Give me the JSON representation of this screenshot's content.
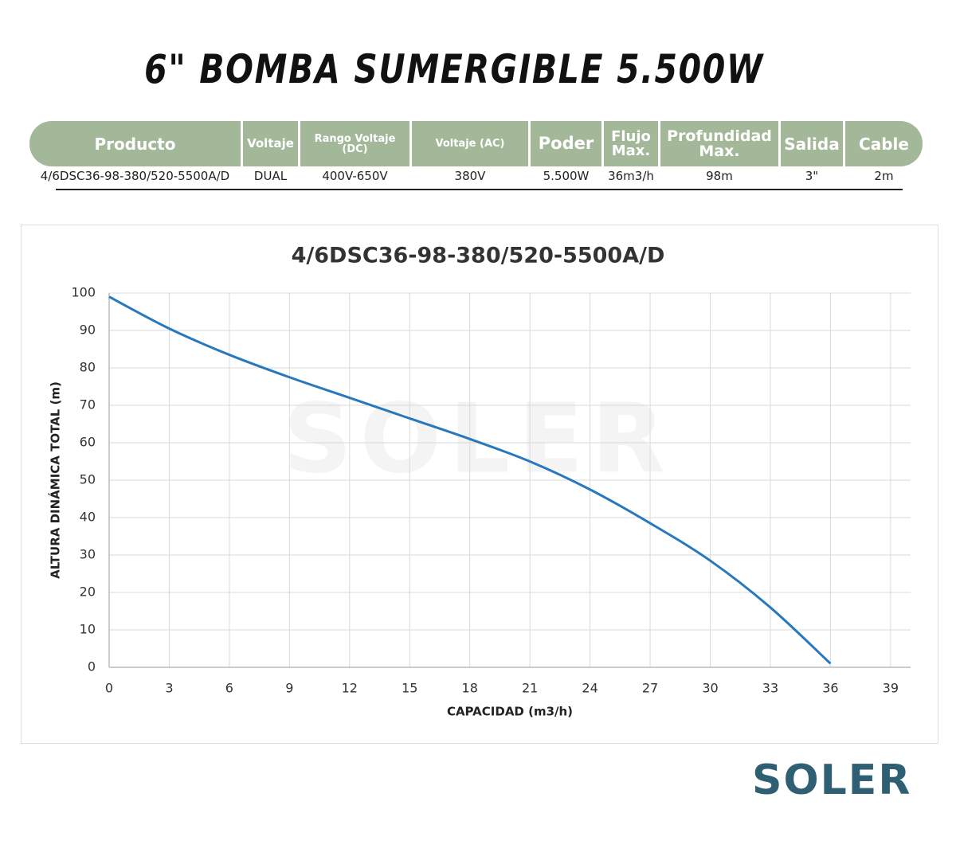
{
  "header": {
    "title": "6\" BOMBA SUMERGIBLE 5.500W"
  },
  "table": {
    "headers": [
      "Producto",
      "Voltaje",
      "Rango Voltaje (DC)",
      "Voltaje (AC)",
      "Poder",
      "Flujo Max.",
      "Profundidad Max.",
      "Salida",
      "Cable"
    ],
    "rows": [
      [
        "4/6DSC36-98-380/520-5500A/D",
        "DUAL",
        "400V-650V",
        "380V",
        "5.500W",
        "36m3/h",
        "98m",
        "3\"",
        "2m"
      ]
    ]
  },
  "chart_data": {
    "type": "line",
    "title": "4/6DSC36-98-380/520-5500A/D",
    "x_label": "CAPACIDAD (m3/h)",
    "y_label": "ALTURA DINÁMICA TOTAL (m)",
    "x": [
      0,
      3,
      6,
      9,
      12,
      15,
      18,
      21,
      24,
      27,
      30,
      33,
      36
    ],
    "values": [
      99,
      90.5,
      83.5,
      77.5,
      72,
      66.5,
      61,
      55,
      47.5,
      38.5,
      28.5,
      16,
      1
    ],
    "color": "#2878bd",
    "xlim": [
      0,
      40
    ],
    "ylim": [
      0,
      100
    ],
    "xticks": [
      0,
      3,
      6,
      9,
      12,
      15,
      18,
      21,
      24,
      27,
      30,
      33,
      36,
      39
    ],
    "yticks": [
      0,
      10,
      20,
      30,
      40,
      50,
      60,
      70,
      80,
      90,
      100
    ],
    "grid": true
  },
  "logo": "SOLER"
}
